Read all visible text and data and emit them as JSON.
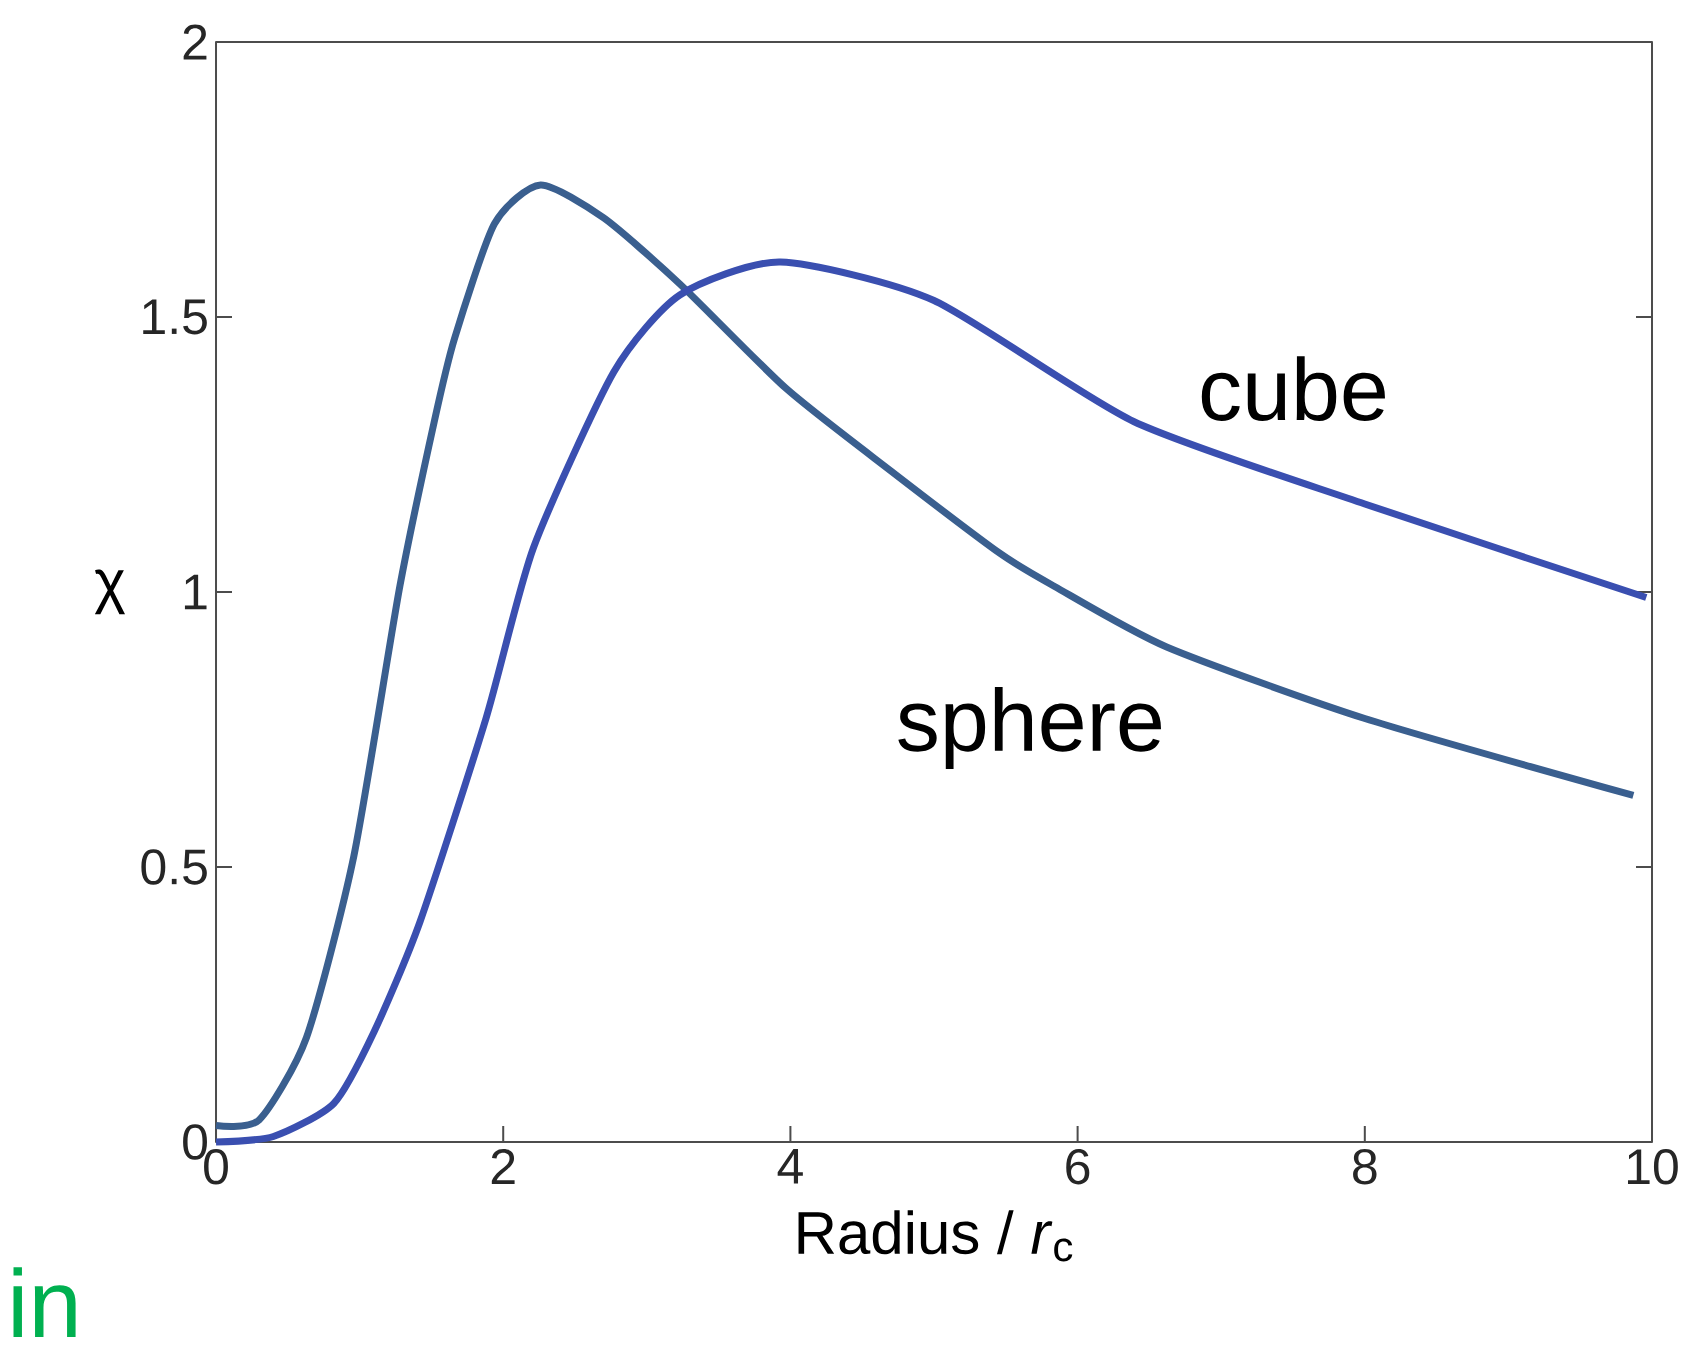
{
  "chart_data": {
    "type": "line",
    "xlabel": "Radius / *r*$_{c}$",
    "ylabel": "χ",
    "annotations": [
      "in"
    ],
    "xlim": [
      0,
      10
    ],
    "ylim": [
      0,
      2
    ],
    "xticks": [
      0,
      2,
      4,
      6,
      8,
      10
    ],
    "yticks": [
      0,
      0.5,
      1,
      1.5,
      2
    ],
    "grid": false,
    "line_style": "solid",
    "series": [
      {
        "name": "sphere",
        "color": "#3a5f8f",
        "x": [
          0,
          0.3,
          0.63,
          0.96,
          1.28,
          1.52,
          1.66,
          1.94,
          2.26,
          2.7,
          3.23,
          3.97,
          4.7,
          5.46,
          5.84,
          6.62,
          8.0,
          9.87
        ],
        "values": [
          0.03,
          0.04,
          0.19,
          0.52,
          1.01,
          1.31,
          1.46,
          1.67,
          1.74,
          1.68,
          1.56,
          1.37,
          1.22,
          1.07,
          1.01,
          0.9,
          0.77,
          0.63
        ]
      },
      {
        "name": "cube",
        "color": "#3a4fb0",
        "x": [
          0,
          0.4,
          0.82,
          1.1,
          1.42,
          1.88,
          2.21,
          2.77,
          3.23,
          3.93,
          5.0,
          6.39,
          8.0,
          9.96
        ],
        "values": [
          0,
          0.01,
          0.07,
          0.2,
          0.4,
          0.77,
          1.08,
          1.4,
          1.54,
          1.6,
          1.53,
          1.31,
          1.16,
          0.99
        ]
      }
    ]
  }
}
